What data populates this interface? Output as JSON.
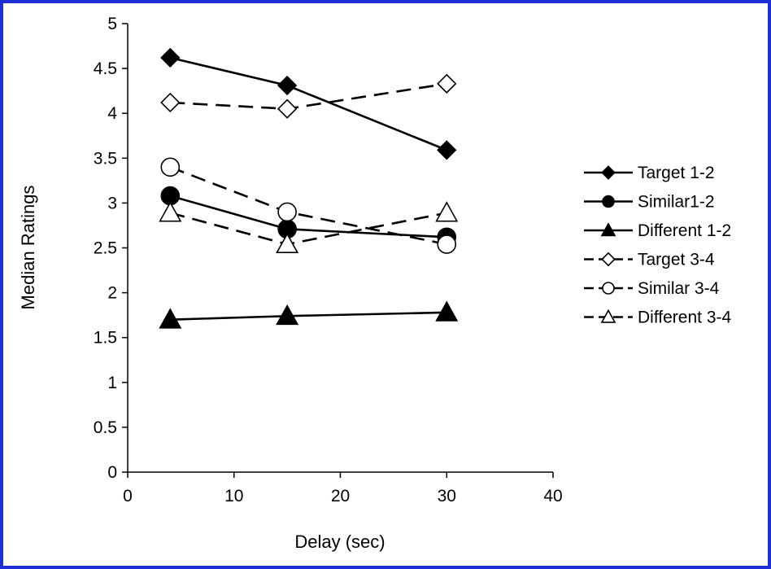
{
  "frame_color": "#1d2fd6",
  "chart_data": {
    "type": "line",
    "xlabel": "Delay (sec)",
    "ylabel": "Median Ratings",
    "xlim": [
      0,
      40
    ],
    "ylim": [
      0,
      5
    ],
    "xticks": [
      0,
      10,
      20,
      30,
      40
    ],
    "yticks": [
      0,
      0.5,
      1,
      1.5,
      2,
      2.5,
      3,
      3.5,
      4,
      4.5,
      5
    ],
    "grid": false,
    "legend_position": "right",
    "x": [
      4,
      15,
      30
    ],
    "series": [
      {
        "name": "Target 1-2",
        "values": [
          4.62,
          4.31,
          3.59
        ],
        "marker": "diamond",
        "filled": true,
        "dashed": false
      },
      {
        "name": "Similar1-2",
        "values": [
          3.08,
          2.71,
          2.62
        ],
        "marker": "circle",
        "filled": true,
        "dashed": false
      },
      {
        "name": "Different 1-2",
        "values": [
          1.7,
          1.74,
          1.78
        ],
        "marker": "triangle",
        "filled": true,
        "dashed": false
      },
      {
        "name": "Target 3-4",
        "values": [
          4.12,
          4.05,
          4.33
        ],
        "marker": "diamond",
        "filled": false,
        "dashed": true
      },
      {
        "name": "Similar 3-4",
        "values": [
          3.4,
          2.9,
          2.54
        ],
        "marker": "circle",
        "filled": false,
        "dashed": true
      },
      {
        "name": "Different 3-4",
        "values": [
          2.89,
          2.54,
          2.89
        ],
        "marker": "triangle",
        "filled": false,
        "dashed": true
      }
    ]
  }
}
